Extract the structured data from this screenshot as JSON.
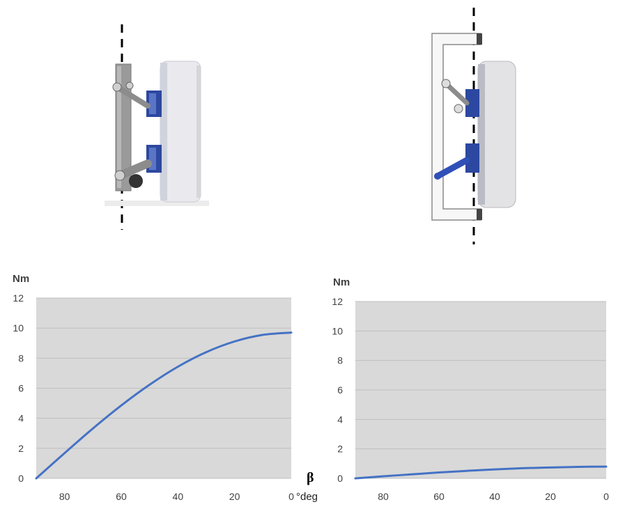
{
  "chart_data": [
    {
      "type": "line",
      "ylabel": "Nm",
      "xlabel": "β",
      "xunit": "°deg",
      "ylim": [
        0,
        12
      ],
      "xlim": [
        90,
        0
      ],
      "yticks": [
        0,
        2,
        4,
        6,
        8,
        10,
        12
      ],
      "xticks": [
        80,
        60,
        40,
        20,
        0
      ],
      "grid": true,
      "series": [
        {
          "color": "#4472C4",
          "x": [
            90,
            80,
            70,
            60,
            50,
            40,
            30,
            20,
            10,
            0
          ],
          "y": [
            0,
            1.68,
            3.32,
            4.85,
            6.23,
            7.43,
            8.4,
            9.11,
            9.55,
            9.7
          ]
        }
      ]
    },
    {
      "type": "line",
      "ylabel": "Nm",
      "ylim": [
        0,
        12
      ],
      "xlim": [
        90,
        0
      ],
      "yticks": [
        0,
        2,
        4,
        6,
        8,
        10,
        12
      ],
      "xticks": [
        80,
        60,
        40,
        20,
        0
      ],
      "grid": true,
      "series": [
        {
          "color": "#4472C4",
          "x": [
            90,
            80,
            70,
            60,
            50,
            40,
            30,
            20,
            10,
            0
          ],
          "y": [
            0,
            0.14,
            0.27,
            0.4,
            0.51,
            0.61,
            0.69,
            0.74,
            0.78,
            0.8
          ]
        }
      ]
    }
  ],
  "colors": {
    "plot_bg": "#d9d9d9",
    "grid": "#bfbfbf",
    "line": "#4472C4",
    "mech_blue": "#2a4aa8"
  }
}
